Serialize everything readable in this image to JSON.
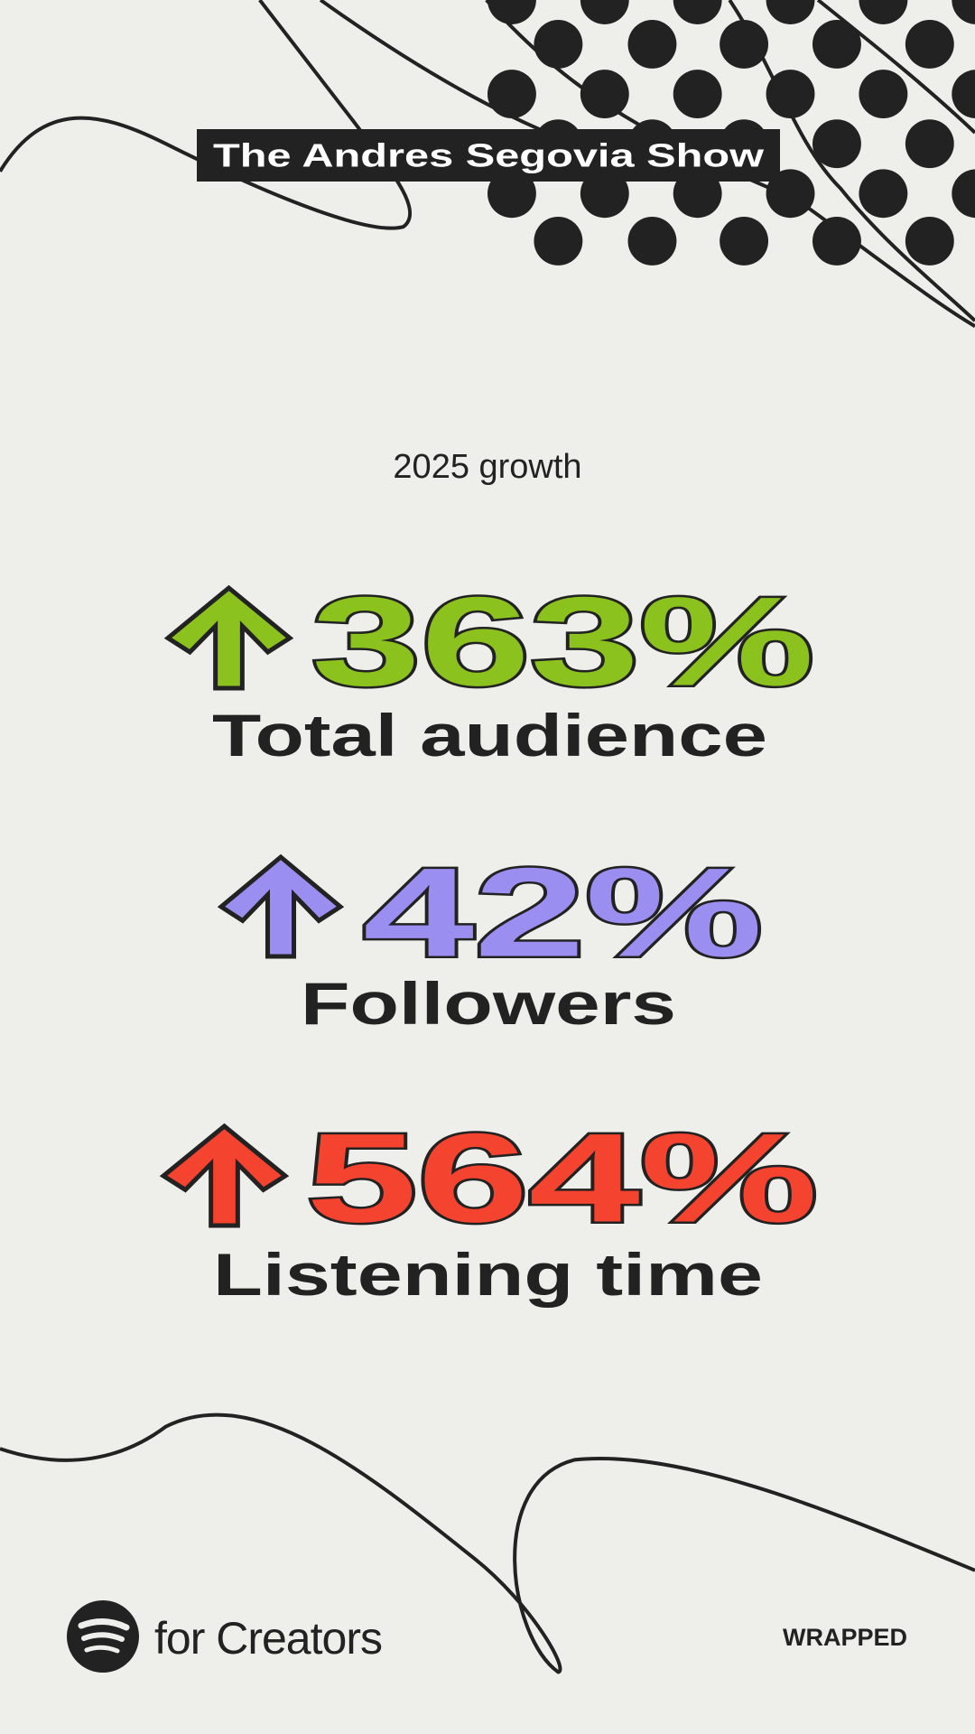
{
  "header": {
    "title": "The Andres Segovia Show"
  },
  "subtitle": "2025 growth",
  "stats": [
    {
      "value": "363%",
      "label": "Total audience",
      "color": "#8cc21e"
    },
    {
      "value": "42%",
      "label": "Followers",
      "color": "#9a8ef0"
    },
    {
      "value": "564%",
      "label": "Listening time",
      "color": "#f4432f"
    }
  ],
  "footer": {
    "brand": "for Creators",
    "tag": "WRAPPED"
  }
}
